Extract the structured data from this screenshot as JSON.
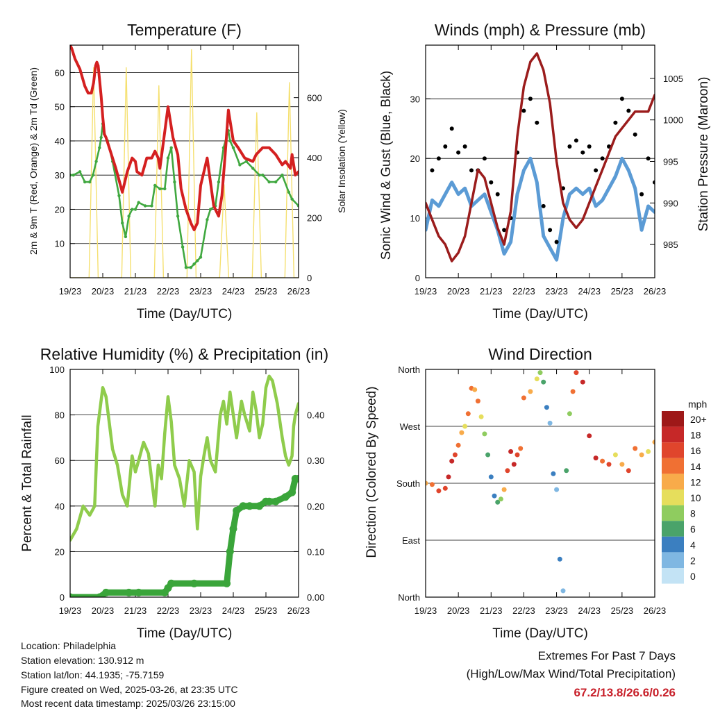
{
  "x_ticks": [
    "19/23",
    "20/23",
    "21/23",
    "22/23",
    "23/23",
    "24/23",
    "25/23",
    "26/23"
  ],
  "colors": {
    "temp": "#d42020",
    "dewpoint": "#40a840",
    "solar": "#f5e070",
    "wind": "#5b9bd5",
    "gust": "#000000",
    "pressure": "#9b1c1c",
    "rh": "#8fcc4c",
    "precip": "#3aa53a",
    "extremes": "#c8202a"
  },
  "chart_data": [
    {
      "type": "line",
      "title": "Temperature (F)",
      "xlabel": "Time (Day/UTC)",
      "ylabel": "2m & 9m T (Red, Orange) & 2m Td (Green)",
      "ylabel_right": "Solar Insolation (Yellow)",
      "x_ticks": [
        "19/23",
        "20/23",
        "21/23",
        "22/23",
        "23/23",
        "24/23",
        "25/23",
        "26/23"
      ],
      "ylim": [
        0,
        68
      ],
      "yticks": [
        10,
        20,
        30,
        40,
        50,
        60
      ],
      "ylim_right": [
        0,
        775
      ],
      "yticks_right": [
        0,
        200,
        400,
        600
      ],
      "series": [
        {
          "name": "2m T",
          "axis": "left",
          "x": [
            0,
            0.05,
            0.15,
            0.3,
            0.45,
            0.55,
            0.65,
            0.72,
            0.78,
            0.82,
            0.86,
            0.9,
            0.95,
            1.0,
            1.05,
            1.1,
            1.2,
            1.4,
            1.6,
            1.75,
            1.9,
            2.0,
            2.05,
            2.2,
            2.35,
            2.5,
            2.6,
            2.7,
            2.75,
            2.85,
            3.0,
            3.15,
            3.3,
            3.4,
            3.55,
            3.7,
            3.8,
            3.9,
            4.0,
            4.2,
            4.4,
            4.55,
            4.65,
            4.75,
            4.85,
            5.0,
            5.15,
            5.35,
            5.6,
            5.7,
            5.9,
            6.1,
            6.3,
            6.5,
            6.6,
            6.75,
            6.8,
            6.9,
            7.0
          ],
          "y": [
            68,
            67,
            64,
            61,
            56,
            54,
            54,
            57,
            62,
            63,
            62,
            58,
            53,
            47,
            42,
            41,
            38,
            32,
            25,
            31,
            35,
            34,
            31,
            30,
            35,
            35,
            37,
            35,
            32,
            39,
            50,
            41,
            36,
            26,
            20,
            16,
            14,
            16,
            27,
            35,
            21,
            18,
            24,
            36,
            49,
            40,
            38,
            35,
            34,
            36,
            38,
            38,
            36,
            33,
            34,
            32,
            36,
            30,
            31
          ]
        },
        {
          "name": "2m Td",
          "axis": "left",
          "x": [
            0,
            0.1,
            0.3,
            0.45,
            0.6,
            0.7,
            0.8,
            0.9,
            0.95,
            1.0,
            1.05,
            1.15,
            1.3,
            1.5,
            1.6,
            1.7,
            1.8,
            1.9,
            2.0,
            2.1,
            2.3,
            2.5,
            2.6,
            2.75,
            2.9,
            3.0,
            3.1,
            3.2,
            3.3,
            3.45,
            3.55,
            3.7,
            3.8,
            3.9,
            4.0,
            4.2,
            4.3,
            4.45,
            4.55,
            4.7,
            4.85,
            4.9,
            5.0,
            5.2,
            5.4,
            5.6,
            5.8,
            5.9,
            6.1,
            6.3,
            6.5,
            6.7,
            6.8,
            7.0
          ],
          "y": [
            30,
            30,
            31,
            28,
            28,
            30,
            34,
            38,
            41,
            45,
            42,
            40,
            34,
            24,
            16,
            12,
            18,
            20,
            20,
            22,
            21,
            21,
            27,
            26,
            26,
            35,
            38,
            28,
            18,
            9,
            3,
            3,
            4,
            5,
            6,
            17,
            20,
            21,
            28,
            38,
            43,
            40,
            38,
            33,
            34,
            32,
            30,
            30,
            28,
            28,
            30,
            25,
            23,
            21
          ]
        },
        {
          "name": "Solar Insolation",
          "axis": "right",
          "x": [
            0,
            0.58,
            0.72,
            0.86,
            1.58,
            1.72,
            1.86,
            2.58,
            2.72,
            2.86,
            3.58,
            3.72,
            3.86,
            4.58,
            4.72,
            4.86,
            5.58,
            5.72,
            5.86,
            6.58,
            6.72,
            6.86,
            7.0
          ],
          "y": [
            0,
            0,
            700,
            0,
            0,
            700,
            0,
            0,
            640,
            0,
            0,
            760,
            0,
            0,
            310,
            0,
            0,
            550,
            0,
            0,
            650,
            0,
            0
          ]
        }
      ]
    },
    {
      "type": "scatter",
      "title": "Winds (mph) & Pressure (mb)",
      "xlabel": "Time (Day/UTC)",
      "ylabel": "Sonic Wind & Gust (Blue, Black)",
      "ylabel_right": "Station Pressure (Maroon)",
      "x_ticks": [
        "19/23",
        "20/23",
        "21/23",
        "22/23",
        "23/23",
        "24/23",
        "25/23",
        "26/23"
      ],
      "ylim": [
        0,
        39
      ],
      "yticks": [
        0,
        10,
        20,
        30
      ],
      "ylim_right": [
        981.0,
        1009.0
      ],
      "yticks_right": [
        985,
        990,
        995,
        1000,
        1005
      ],
      "series": [
        {
          "name": "Gust",
          "axis": "left",
          "x": [
            0,
            0.2,
            0.4,
            0.6,
            0.8,
            1.0,
            1.2,
            1.4,
            1.6,
            1.8,
            2.0,
            2.2,
            2.4,
            2.6,
            2.8,
            3.0,
            3.2,
            3.4,
            3.6,
            3.8,
            4.0,
            4.2,
            4.4,
            4.6,
            4.8,
            5.0,
            5.2,
            5.4,
            5.6,
            5.8,
            6.0,
            6.2,
            6.4,
            6.6,
            6.8,
            7.0
          ],
          "y": [
            12,
            18,
            20,
            22,
            25,
            21,
            22,
            18,
            18,
            20,
            16,
            14,
            8,
            10,
            21,
            28,
            30,
            26,
            12,
            8,
            6,
            15,
            22,
            23,
            21,
            22,
            18,
            20,
            22,
            26,
            30,
            28,
            24,
            14,
            20,
            16
          ]
        },
        {
          "name": "Wind",
          "axis": "left",
          "x": [
            0,
            0.2,
            0.4,
            0.6,
            0.8,
            1.0,
            1.2,
            1.4,
            1.6,
            1.8,
            2.0,
            2.2,
            2.4,
            2.6,
            2.8,
            3.0,
            3.2,
            3.4,
            3.6,
            3.8,
            4.0,
            4.2,
            4.4,
            4.6,
            4.8,
            5.0,
            5.2,
            5.4,
            5.6,
            5.8,
            6.0,
            6.2,
            6.4,
            6.6,
            6.8,
            7.0
          ],
          "y": [
            8,
            13,
            12,
            14,
            16,
            14,
            15,
            12,
            13,
            14,
            11,
            8,
            4,
            6,
            14,
            18,
            20,
            16,
            7,
            5,
            3,
            10,
            14,
            15,
            14,
            15,
            12,
            13,
            15,
            17,
            20,
            18,
            15,
            8,
            12,
            11
          ]
        },
        {
          "name": "Pressure",
          "axis": "right",
          "x": [
            0,
            0.2,
            0.4,
            0.6,
            0.8,
            1.0,
            1.2,
            1.4,
            1.6,
            1.8,
            2.0,
            2.2,
            2.4,
            2.6,
            2.8,
            3.0,
            3.2,
            3.4,
            3.6,
            3.8,
            4.0,
            4.2,
            4.4,
            4.6,
            4.8,
            5.0,
            5.2,
            5.4,
            5.6,
            5.8,
            6.0,
            6.2,
            6.4,
            6.6,
            6.8,
            7.0
          ],
          "y": [
            990,
            988,
            986,
            985,
            983,
            984,
            986,
            990,
            994,
            993,
            990,
            987,
            985,
            989,
            998,
            1004,
            1007,
            1008,
            1006,
            1002,
            995,
            990,
            988,
            987,
            988,
            990,
            992,
            994,
            996,
            998,
            999,
            1000,
            1001,
            1001,
            1001,
            1003
          ]
        }
      ]
    },
    {
      "type": "line",
      "title": "Relative Humidity (%) & Precipitation (in)",
      "xlabel": "Time (Day/UTC)",
      "ylabel": "Percent & Total Rainfall",
      "x_ticks": [
        "19/23",
        "20/23",
        "21/23",
        "22/23",
        "23/23",
        "24/23",
        "25/23",
        "26/23"
      ],
      "ylim": [
        0,
        100
      ],
      "yticks": [
        0,
        20,
        40,
        60,
        80,
        100
      ],
      "ylim_right": [
        0,
        0.5
      ],
      "yticks_right": [
        "0.00",
        "0.10",
        "0.20",
        "0.30",
        "0.40"
      ],
      "series": [
        {
          "name": "RH",
          "axis": "left",
          "x": [
            0,
            0.2,
            0.4,
            0.5,
            0.6,
            0.75,
            0.85,
            1.0,
            1.1,
            1.3,
            1.45,
            1.6,
            1.75,
            1.9,
            2.0,
            2.1,
            2.25,
            2.4,
            2.6,
            2.7,
            2.8,
            2.9,
            3.0,
            3.1,
            3.2,
            3.35,
            3.5,
            3.65,
            3.8,
            3.9,
            4.0,
            4.1,
            4.2,
            4.3,
            4.45,
            4.6,
            4.7,
            4.8,
            4.9,
            5.0,
            5.1,
            5.25,
            5.35,
            5.5,
            5.6,
            5.7,
            5.8,
            5.9,
            6.0,
            6.1,
            6.2,
            6.35,
            6.5,
            6.6,
            6.7,
            6.8,
            6.85,
            6.9,
            7.0
          ],
          "y": [
            25,
            30,
            40,
            38,
            36,
            40,
            75,
            92,
            88,
            65,
            58,
            45,
            40,
            62,
            55,
            60,
            68,
            63,
            40,
            58,
            52,
            72,
            88,
            77,
            58,
            52,
            40,
            60,
            55,
            30,
            53,
            62,
            70,
            60,
            55,
            80,
            86,
            76,
            90,
            80,
            70,
            86,
            80,
            73,
            90,
            82,
            70,
            76,
            92,
            97,
            95,
            85,
            70,
            62,
            58,
            62,
            75,
            80,
            85
          ]
        },
        {
          "name": "Precipitation",
          "axis": "right",
          "x": [
            0,
            0.9,
            1.1,
            1.8,
            2.1,
            2.9,
            3.0,
            3.1,
            3.8,
            4.8,
            4.9,
            5.0,
            5.1,
            5.3,
            5.5,
            5.8,
            6.0,
            6.1,
            6.3,
            6.6,
            6.8,
            6.9,
            7.0
          ],
          "y": [
            0.0,
            0.0,
            0.01,
            0.01,
            0.01,
            0.01,
            0.02,
            0.03,
            0.03,
            0.03,
            0.1,
            0.15,
            0.19,
            0.2,
            0.2,
            0.2,
            0.21,
            0.21,
            0.21,
            0.22,
            0.23,
            0.26,
            0.26
          ]
        }
      ]
    },
    {
      "type": "scatter",
      "title": "Wind Direction",
      "xlabel": "Time (Day/UTC)",
      "ylabel": "Direction (Colored By Speed)",
      "x_ticks": [
        "19/23",
        "20/23",
        "21/23",
        "22/23",
        "23/23",
        "24/23",
        "25/23",
        "26/23"
      ],
      "y_ticks": [
        "North",
        "East",
        "South",
        "West",
        "North"
      ],
      "ylim": [
        0,
        360
      ],
      "colorbar": {
        "title": "mph",
        "labels": [
          "20+",
          "18",
          "16",
          "14",
          "12",
          "10",
          "8",
          "6",
          "4",
          "2",
          "0"
        ],
        "colors": [
          "#9e1818",
          "#c62828",
          "#e0452c",
          "#f07033",
          "#f8ab4a",
          "#e6de5c",
          "#8fcc5f",
          "#4aa36a",
          "#3b7fc0",
          "#7fb7e2",
          "#c3e3f5"
        ]
      },
      "series": [
        {
          "name": "Direction",
          "x": [
            0,
            0.2,
            0.4,
            0.6,
            0.7,
            0.8,
            0.9,
            1.0,
            1.1,
            1.2,
            1.3,
            1.4,
            1.5,
            1.6,
            1.7,
            1.8,
            1.9,
            2.0,
            2.1,
            2.2,
            2.3,
            2.4,
            2.5,
            2.6,
            2.7,
            2.8,
            2.9,
            3.0,
            3.2,
            3.4,
            3.5,
            3.6,
            3.7,
            3.8,
            3.9,
            4.0,
            4.1,
            4.2,
            4.3,
            4.4,
            4.5,
            4.6,
            4.8,
            5.0,
            5.2,
            5.4,
            5.6,
            5.8,
            6.0,
            6.2,
            6.4,
            6.6,
            6.8,
            7.0
          ],
          "y": [
            180,
            178,
            168,
            172,
            190,
            215,
            225,
            240,
            260,
            270,
            290,
            330,
            328,
            310,
            285,
            258,
            225,
            190,
            160,
            150,
            155,
            170,
            200,
            230,
            210,
            225,
            235,
            315,
            325,
            345,
            355,
            340,
            300,
            275,
            195,
            170,
            60,
            10,
            200,
            290,
            325,
            355,
            340,
            255,
            220,
            215,
            210,
            225,
            210,
            200,
            235,
            225,
            230,
            245
          ],
          "speed": [
            12,
            14,
            16,
            16,
            18,
            18,
            16,
            14,
            12,
            10,
            14,
            14,
            12,
            14,
            10,
            8,
            6,
            4,
            4,
            6,
            8,
            12,
            16,
            18,
            18,
            16,
            14,
            14,
            12,
            10,
            8,
            6,
            4,
            2,
            4,
            2,
            4,
            2,
            6,
            8,
            14,
            16,
            18,
            18,
            18,
            14,
            16,
            10,
            12,
            16,
            14,
            12,
            10,
            12
          ]
        }
      ]
    }
  ],
  "info": {
    "location": "Location: Philadelphia",
    "elevation": "Station elevation: 130.912 m",
    "latlon": "Station lat/lon: 44.1935; -75.7159",
    "created": "Figure created on Wed, 2025-03-26, at 23:35 UTC",
    "recent": "Most recent data timestamp: 2025/03/26 23:15:00"
  },
  "extremes": {
    "title": "Extremes For Past 7 Days",
    "subtitle": "(High/Low/Max Wind/Total Precipitation)",
    "values": "67.2/13.8/26.6/0.26"
  }
}
